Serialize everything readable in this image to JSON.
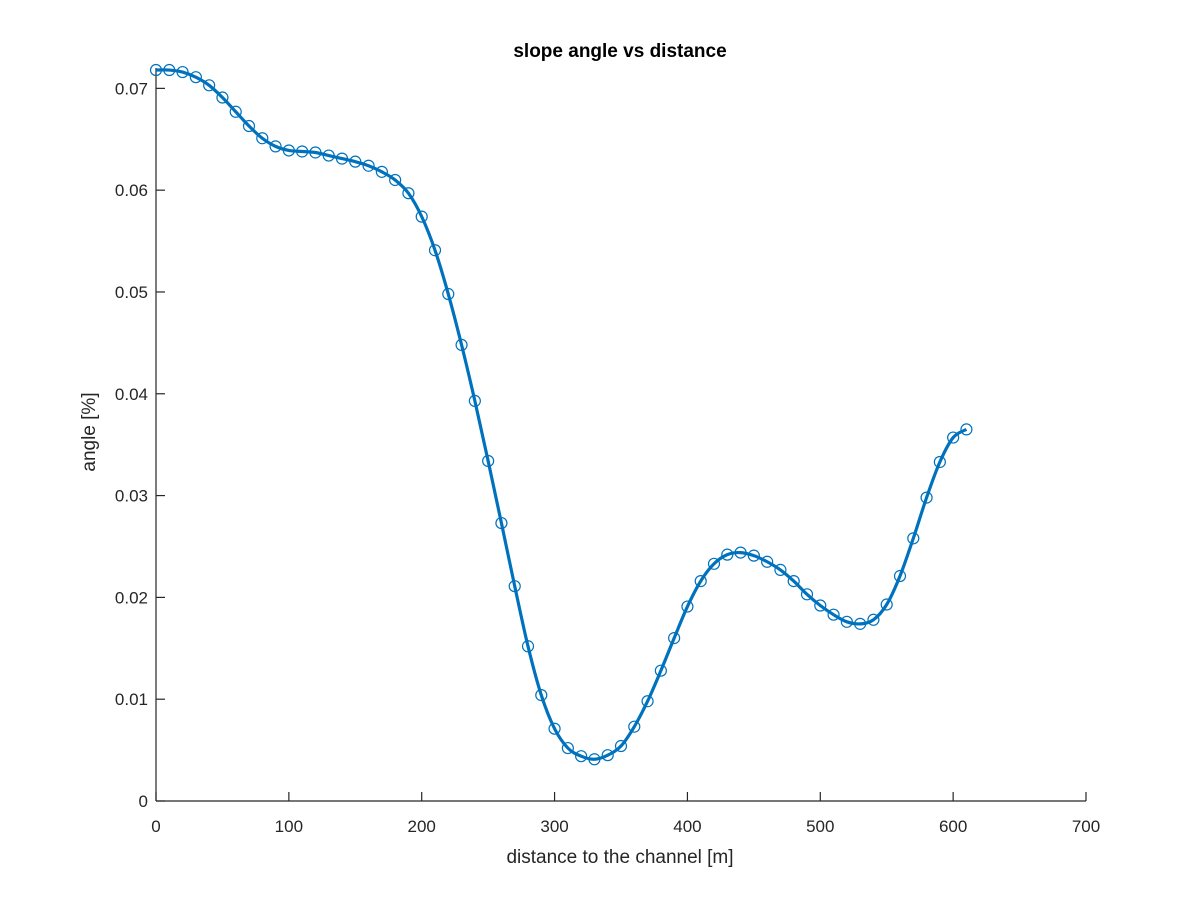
{
  "chart_data": {
    "type": "line",
    "title": "slope angle vs distance",
    "xlabel": "distance to the channel [m]",
    "ylabel": "angle [%]",
    "xlim": [
      0,
      700
    ],
    "ylim": [
      0,
      0.072
    ],
    "xticks": [
      0,
      100,
      200,
      300,
      400,
      500,
      600,
      700
    ],
    "yticks": [
      0,
      0.01,
      0.02,
      0.03,
      0.04,
      0.05,
      0.06,
      0.07
    ],
    "xtick_labels": [
      "0",
      "100",
      "200",
      "300",
      "400",
      "500",
      "600",
      "700"
    ],
    "ytick_labels": [
      "0",
      "0.01",
      "0.02",
      "0.03",
      "0.04",
      "0.05",
      "0.06",
      "0.07"
    ],
    "grid": false,
    "series": [
      {
        "color": "#0072BD",
        "marker": "circle",
        "x": [
          0,
          10,
          20,
          30,
          40,
          50,
          60,
          70,
          80,
          90,
          100,
          110,
          120,
          130,
          140,
          150,
          160,
          170,
          180,
          190,
          200,
          210,
          220,
          230,
          240,
          250,
          260,
          270,
          280,
          290,
          300,
          310,
          320,
          330,
          340,
          350,
          360,
          370,
          380,
          390,
          400,
          410,
          420,
          430,
          440,
          450,
          460,
          470,
          480,
          490,
          500,
          510,
          520,
          530,
          540,
          550,
          560,
          570,
          580,
          590,
          600,
          610
        ],
        "values": [
          0.0718,
          0.0718,
          0.0716,
          0.0711,
          0.0703,
          0.0691,
          0.0677,
          0.0663,
          0.0651,
          0.0643,
          0.0639,
          0.0638,
          0.0637,
          0.0634,
          0.0631,
          0.0628,
          0.0624,
          0.0618,
          0.061,
          0.0597,
          0.0574,
          0.0541,
          0.0498,
          0.0448,
          0.0393,
          0.0334,
          0.0273,
          0.0211,
          0.0152,
          0.0104,
          0.0071,
          0.0052,
          0.0044,
          0.0041,
          0.0045,
          0.0054,
          0.0073,
          0.0098,
          0.0128,
          0.016,
          0.0191,
          0.0216,
          0.0233,
          0.0242,
          0.0244,
          0.0241,
          0.0235,
          0.0227,
          0.0216,
          0.0203,
          0.0192,
          0.0183,
          0.0176,
          0.0174,
          0.0178,
          0.0193,
          0.0221,
          0.0258,
          0.0298,
          0.0333,
          0.0357,
          0.0365
        ]
      }
    ]
  }
}
